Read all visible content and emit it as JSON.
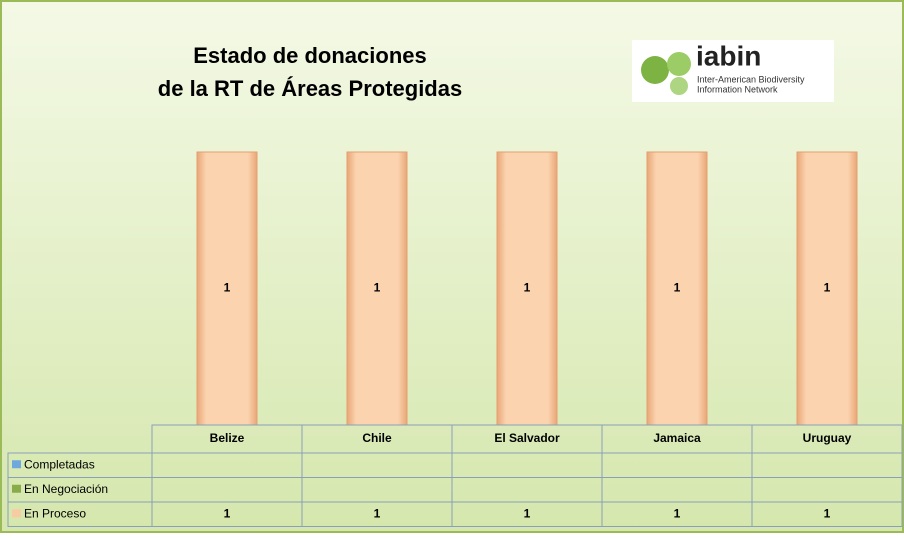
{
  "chart_data": {
    "type": "bar",
    "title": [
      "Estado de donaciones",
      "de la RT de Áreas Protegidas"
    ],
    "logo": {
      "name": "iabin",
      "subtitle": [
        "Inter-American Biodiversity",
        "Information Network"
      ]
    },
    "categories": [
      "Belize",
      "Chile",
      "El Salvador",
      "Jamaica",
      "Uruguay"
    ],
    "series": [
      {
        "name": "Completadas",
        "color": "#6fa8dc",
        "values": [
          null,
          null,
          null,
          null,
          null
        ]
      },
      {
        "name": "En Negociación",
        "color": "#8aab4a",
        "values": [
          null,
          null,
          null,
          null,
          null
        ]
      },
      {
        "name": "En Proceso",
        "color": "#f9cba3",
        "values": [
          1,
          1,
          1,
          1,
          1
        ]
      }
    ],
    "ylim": [
      0,
      1
    ],
    "data_table": true
  }
}
